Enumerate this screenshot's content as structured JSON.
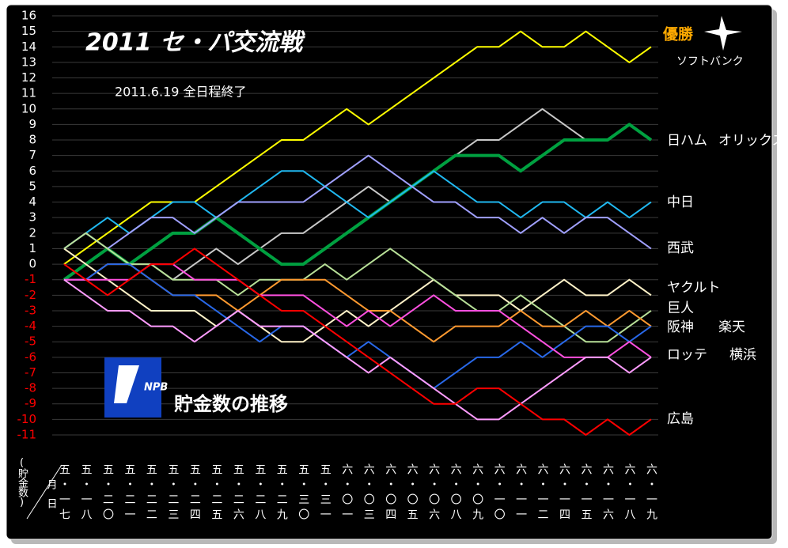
{
  "chart_data": {
    "type": "line",
    "title": "2011 セ・パ交流戦",
    "subtitle": "2011.6.19 全日程終了",
    "caption": "貯金数の推移",
    "logo_text": "NPB",
    "winner_label": "優勝",
    "y_axis_label": "(貯金数)",
    "x_axis_label_top": "月",
    "x_axis_label_bottom": "日",
    "categories": [
      "五・一七",
      "五・一八",
      "五・二〇",
      "五・二一",
      "五・二二",
      "五・二三",
      "五・二四",
      "五・二五",
      "五・二六",
      "五・二八",
      "五・二九",
      "五・三〇",
      "五・三一",
      "六・〇一",
      "六・〇三",
      "六・〇四",
      "六・〇五",
      "六・〇六",
      "六・〇八",
      "六・〇九",
      "六・一〇",
      "六・一一",
      "六・一二",
      "六・一四",
      "六・一五",
      "六・一六",
      "六・一八",
      "六・一九"
    ],
    "ylim": [
      -11,
      16
    ],
    "yticks": [
      -11,
      -10,
      -9,
      -8,
      -7,
      -6,
      -5,
      -4,
      -3,
      -2,
      -1,
      0,
      1,
      2,
      3,
      4,
      5,
      6,
      7,
      8,
      9,
      10,
      11,
      12,
      13,
      14,
      15,
      16
    ],
    "grid": true,
    "tick_color": "#ffffff",
    "negative_tick_color": "#ff0000",
    "series": [
      {
        "name": "ソフトバンク",
        "color": "#ffff00",
        "width": 2,
        "values": [
          0,
          1,
          2,
          3,
          4,
          4,
          4,
          5,
          6,
          7,
          8,
          8,
          9,
          10,
          9,
          10,
          11,
          12,
          13,
          14,
          14,
          15,
          14,
          14,
          15,
          14,
          13,
          14
        ]
      },
      {
        "name": "オリックス",
        "color": "#c8c8c8",
        "width": 2,
        "values": [
          -1,
          0,
          1,
          0,
          0,
          -1,
          0,
          1,
          0,
          1,
          2,
          2,
          3,
          4,
          5,
          4,
          5,
          6,
          7,
          8,
          8,
          9,
          10,
          9,
          8,
          8,
          9,
          8
        ]
      },
      {
        "name": "日ハム",
        "color": "#00a040",
        "width": 4,
        "values": [
          -1,
          0,
          1,
          0,
          1,
          2,
          2,
          3,
          2,
          1,
          0,
          0,
          1,
          2,
          3,
          4,
          5,
          6,
          7,
          7,
          7,
          6,
          7,
          8,
          8,
          8,
          9,
          8
        ]
      },
      {
        "name": "中日",
        "color": "#20b8f0",
        "width": 2,
        "values": [
          1,
          2,
          3,
          2,
          3,
          4,
          4,
          3,
          4,
          5,
          6,
          6,
          5,
          4,
          3,
          4,
          5,
          6,
          5,
          4,
          4,
          3,
          4,
          4,
          3,
          4,
          3,
          4
        ]
      },
      {
        "name": "西武",
        "color": "#a0a0ff",
        "width": 2,
        "values": [
          1,
          2,
          1,
          2,
          3,
          3,
          2,
          3,
          4,
          4,
          4,
          4,
          5,
          6,
          7,
          6,
          5,
          4,
          4,
          3,
          3,
          2,
          3,
          2,
          3,
          3,
          2,
          1
        ]
      },
      {
        "name": "ヤクルト",
        "color": "#fff2c8",
        "width": 2,
        "values": [
          1,
          0,
          -1,
          -2,
          -3,
          -3,
          -3,
          -4,
          -3,
          -4,
          -5,
          -5,
          -4,
          -3,
          -4,
          -3,
          -2,
          -1,
          -2,
          -2,
          -2,
          -3,
          -2,
          -1,
          -2,
          -2,
          -1,
          -2
        ]
      },
      {
        "name": "巨人",
        "color": "#b8e098",
        "width": 2,
        "values": [
          1,
          2,
          1,
          0,
          0,
          -1,
          -1,
          -1,
          -2,
          -1,
          -1,
          -1,
          0,
          -1,
          0,
          1,
          0,
          -1,
          -2,
          -3,
          -3,
          -2,
          -3,
          -4,
          -5,
          -5,
          -4,
          -3
        ]
      },
      {
        "name": "阪神",
        "color": "#ff9a30",
        "width": 2,
        "values": [
          -1,
          -1,
          0,
          0,
          -1,
          -2,
          -2,
          -2,
          -3,
          -2,
          -1,
          -1,
          -1,
          -2,
          -3,
          -3,
          -4,
          -5,
          -4,
          -4,
          -4,
          -3,
          -4,
          -4,
          -3,
          -4,
          -3,
          -4
        ]
      },
      {
        "name": "楽天",
        "color": "#2868e8",
        "width": 2,
        "values": [
          -1,
          -1,
          0,
          0,
          -1,
          -2,
          -2,
          -3,
          -4,
          -5,
          -4,
          -4,
          -5,
          -6,
          -5,
          -6,
          -7,
          -8,
          -7,
          -6,
          -6,
          -5,
          -6,
          -5,
          -4,
          -4,
          -5,
          -4
        ]
      },
      {
        "name": "ロッテ",
        "color": "#ff50e0",
        "width": 2,
        "values": [
          -1,
          -1,
          -1,
          -1,
          0,
          0,
          -1,
          -1,
          -1,
          -2,
          -2,
          -2,
          -3,
          -4,
          -3,
          -4,
          -3,
          -2,
          -3,
          -3,
          -3,
          -4,
          -5,
          -6,
          -6,
          -6,
          -5,
          -6
        ]
      },
      {
        "name": "横浜",
        "color": "#ff9cff",
        "width": 2,
        "values": [
          -1,
          -2,
          -3,
          -3,
          -4,
          -4,
          -5,
          -4,
          -3,
          -4,
          -4,
          -4,
          -5,
          -6,
          -7,
          -6,
          -7,
          -8,
          -9,
          -10,
          -10,
          -9,
          -8,
          -7,
          -6,
          -6,
          -7,
          -6
        ]
      },
      {
        "name": "広島",
        "color": "#ff0000",
        "width": 2,
        "values": [
          0,
          -1,
          -2,
          -1,
          0,
          0,
          1,
          0,
          -1,
          -2,
          -3,
          -3,
          -4,
          -5,
          -6,
          -7,
          -8,
          -9,
          -9,
          -8,
          -8,
          -9,
          -10,
          -10,
          -11,
          -10,
          -11,
          -10
        ]
      }
    ]
  }
}
